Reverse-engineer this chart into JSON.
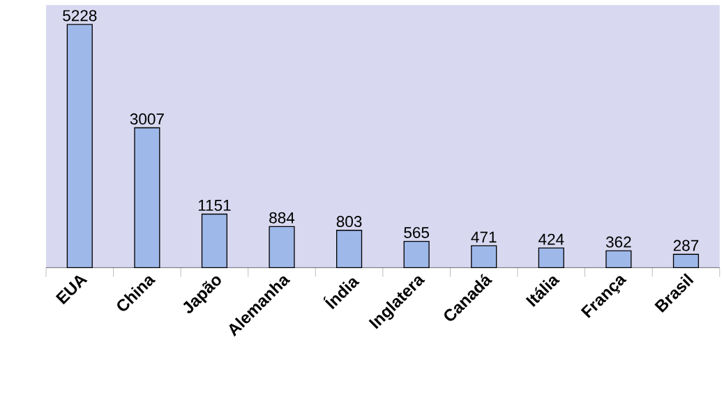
{
  "chart_data": {
    "type": "bar",
    "categories": [
      "EUA",
      "China",
      "Japão",
      "Alemanha",
      "Índia",
      "Inglatera",
      "Canadá",
      "Itália",
      "França",
      "Brasil"
    ],
    "values": [
      5228,
      3007,
      1151,
      884,
      803,
      565,
      471,
      424,
      362,
      287
    ],
    "color": "#9fb8ea",
    "data_labels": true
  }
}
